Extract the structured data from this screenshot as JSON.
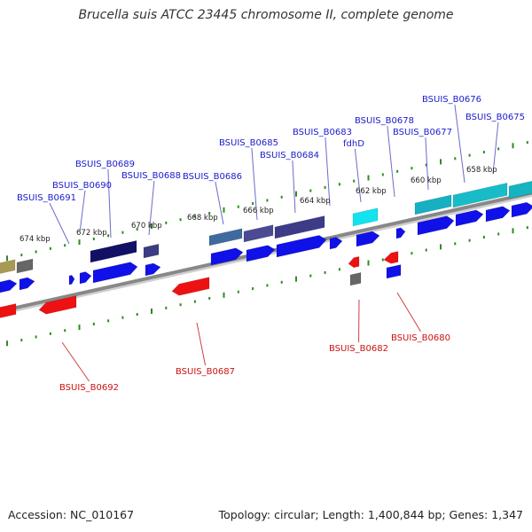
{
  "title": "Brucella suis ATCC 23445 chromosome II, complete genome",
  "accession_text": "Accession: NC_010167",
  "summary_text": "Topology: circular; Length: 1,400,844 bp; Genes: 1,347",
  "colors": {
    "backbone": "#888888",
    "tick": "#2e8b1e",
    "forward_label": "#1a1acd",
    "reverse_label": "#cc1111",
    "forward_cds": "#1010e8",
    "reverse_cds": "#ee1111"
  },
  "scale_labels": [
    "674 kbp",
    "672 kbp",
    "670 kbp",
    "668 kbp",
    "666 kbp",
    "664 kbp",
    "662 kbp",
    "660 kbp",
    "658 kbp"
  ],
  "forward_gene_labels": [
    "BSUIS_B0691",
    "BSUIS_B0690",
    "BSUIS_B0689",
    "BSUIS_B0688",
    "BSUIS_B0686",
    "BSUIS_B0685",
    "BSUIS_B0684",
    "BSUIS_B0683",
    "fdhD",
    "BSUIS_B0678",
    "BSUIS_B0677",
    "BSUIS_B0676",
    "BSUIS_B0675"
  ],
  "reverse_gene_labels": [
    "BSUIS_B0692",
    "BSUIS_B0687",
    "BSUIS_B0682",
    "BSUIS_B0680"
  ]
}
